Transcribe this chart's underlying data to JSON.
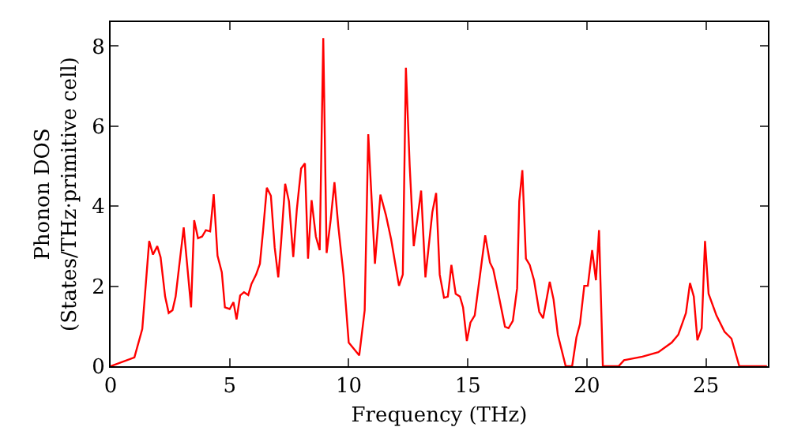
{
  "chart_data": {
    "type": "line",
    "xlabel": "Frequency (THz)",
    "ylabel": "Phonon DOS\n(States/THz·primitive cell)",
    "xlim": [
      0,
      27.6
    ],
    "ylim": [
      0,
      8.6
    ],
    "xticks": [
      0,
      5,
      10,
      15,
      20,
      25
    ],
    "yticks": [
      0,
      2,
      4,
      6,
      8
    ],
    "grid": false,
    "marker": "none",
    "line_style": "solid",
    "x": [
      0,
      1.0,
      1.33,
      1.62,
      1.78,
      1.96,
      2.1,
      2.29,
      2.44,
      2.6,
      2.73,
      3.07,
      3.38,
      3.51,
      3.67,
      3.84,
      4.0,
      4.18,
      4.33,
      4.49,
      4.67,
      4.8,
      5.0,
      5.16,
      5.29,
      5.44,
      5.6,
      5.78,
      5.91,
      6.11,
      6.27,
      6.4,
      6.56,
      6.73,
      6.89,
      7.04,
      7.16,
      7.33,
      7.49,
      7.67,
      7.82,
      8.0,
      8.16,
      8.29,
      8.44,
      8.62,
      8.78,
      8.93,
      9.07,
      9.24,
      9.4,
      9.56,
      9.78,
      10.0,
      10.44,
      10.67,
      10.82,
      11.1,
      11.33,
      11.56,
      11.78,
      12.11,
      12.27,
      12.4,
      12.56,
      12.73,
      13.04,
      13.22,
      13.51,
      13.67,
      13.82,
      14.0,
      14.16,
      14.31,
      14.49,
      14.67,
      14.8,
      14.96,
      15.11,
      15.29,
      15.73,
      15.93,
      16.07,
      16.33,
      16.56,
      16.71,
      16.89,
      17.07,
      17.16,
      17.29,
      17.44,
      17.6,
      17.78,
      18.0,
      18.16,
      18.44,
      18.6,
      18.78,
      19.11,
      19.38,
      19.56,
      19.71,
      19.89,
      20.04,
      20.22,
      20.38,
      20.51,
      20.67,
      21.33,
      21.56,
      22.33,
      23.0,
      23.56,
      23.84,
      24.16,
      24.33,
      24.49,
      24.64,
      24.82,
      24.96,
      25.11,
      25.44,
      25.78,
      26.07,
      26.4,
      27.56
    ],
    "series": [
      {
        "color": "#ff0000",
        "values": [
          0,
          0.22,
          0.93,
          3.13,
          2.79,
          3.0,
          2.72,
          1.74,
          1.33,
          1.4,
          1.74,
          3.47,
          1.47,
          3.65,
          3.2,
          3.24,
          3.4,
          3.37,
          4.3,
          2.76,
          2.35,
          1.47,
          1.43,
          1.6,
          1.17,
          1.77,
          1.85,
          1.78,
          2.05,
          2.29,
          2.56,
          3.37,
          4.46,
          4.26,
          2.97,
          2.22,
          3.1,
          4.56,
          4.12,
          2.73,
          3.92,
          4.94,
          5.07,
          2.69,
          4.15,
          3.24,
          2.9,
          8.2,
          2.83,
          3.65,
          4.6,
          3.51,
          2.29,
          0.59,
          0.27,
          1.4,
          5.8,
          2.56,
          4.29,
          3.78,
          3.17,
          2.01,
          2.29,
          7.46,
          5.0,
          3.0,
          4.39,
          2.22,
          3.85,
          4.33,
          2.29,
          1.71,
          1.74,
          2.53,
          1.81,
          1.74,
          1.47,
          0.63,
          1.09,
          1.27,
          3.27,
          2.59,
          2.42,
          1.67,
          0.99,
          0.95,
          1.13,
          1.95,
          4.12,
          4.9,
          2.69,
          2.53,
          2.15,
          1.36,
          1.2,
          2.11,
          1.67,
          0.79,
          0,
          0,
          0.72,
          1.06,
          2.01,
          2.01,
          2.9,
          2.15,
          3.4,
          0,
          0,
          0.15,
          0.24,
          0.35,
          0.59,
          0.79,
          1.33,
          2.08,
          1.74,
          0.65,
          0.95,
          3.13,
          1.81,
          1.27,
          0.86,
          0.69,
          0,
          0
        ]
      }
    ]
  }
}
